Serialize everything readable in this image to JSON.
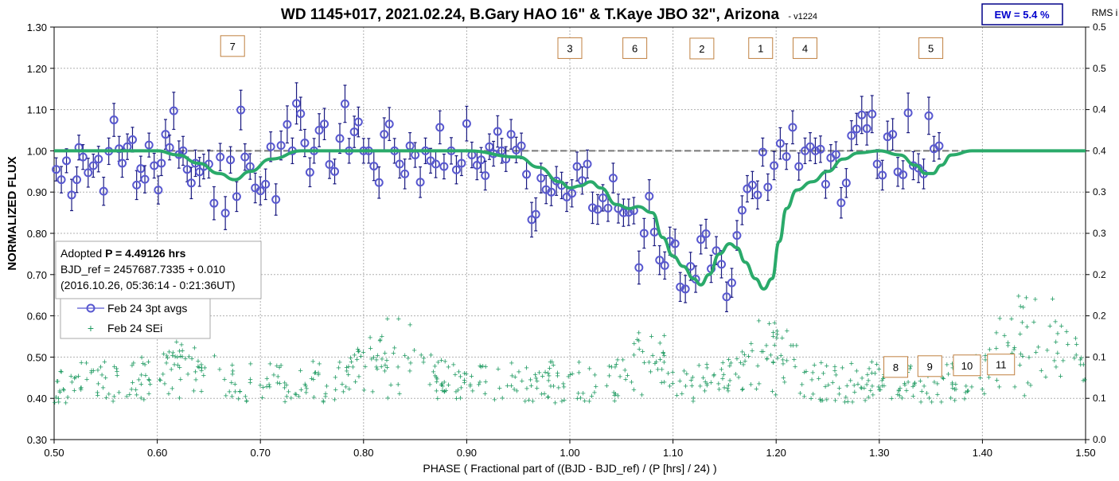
{
  "chart_data": {
    "type": "scatter",
    "title": "WD 1145+017, 2021.02.24, B.Gary HAO 16\" & T.Kaye JBO 32\", Arizona",
    "version": "- v1224",
    "xlabel": "PHASE ( Fractional part of ((BJD - BJD_ref) / (P [hrs] / 24) )",
    "ylabel": "NORMALIZED FLUX",
    "y2label": "RMS i",
    "xlim": [
      0.5,
      1.5
    ],
    "ylim": [
      0.3,
      1.3
    ],
    "y2lim": [
      0.0,
      0.5
    ],
    "x_ticks": [
      "0.50",
      "0.60",
      "0.70",
      "0.80",
      "0.90",
      "1.00",
      "1.10",
      "1.20",
      "1.30",
      "1.40",
      "1.50"
    ],
    "y_ticks": [
      "0.30",
      "0.40",
      "0.50",
      "0.60",
      "0.70",
      "0.80",
      "0.90",
      "1.00",
      "1.10",
      "1.20",
      "1.30"
    ],
    "y2_ticks": [
      "0.0",
      "0.1",
      "0.1",
      "0.2",
      "0.2",
      "0.3",
      "0.3",
      "0.4",
      "0.4",
      "0.5",
      "0.5"
    ],
    "grid": true,
    "ew_badge": "EW = 5.4 %",
    "info_box": {
      "line1_prefix": "Adopted ",
      "line1_bold": "P = 4.49126 hrs",
      "line2": "BJD_ref = 2457687.7335 + 0.010",
      "line3": "(2016.10.26, 05:36:14 - 0:21:36UT)"
    },
    "legend": [
      "Feb 24 3pt avgs",
      "Feb 24 SEi"
    ],
    "dip_labels": [
      {
        "label": "7",
        "x": 0.673,
        "y": 1.254
      },
      {
        "label": "3",
        "x": 1.0,
        "y": 1.249
      },
      {
        "label": "6",
        "x": 1.063,
        "y": 1.249
      },
      {
        "label": "2",
        "x": 1.128,
        "y": 1.248
      },
      {
        "label": "1",
        "x": 1.185,
        "y": 1.249
      },
      {
        "label": "4",
        "x": 1.228,
        "y": 1.249
      },
      {
        "label": "5",
        "x": 1.35,
        "y": 1.249
      },
      {
        "label": "8",
        "x": 1.316,
        "y": 0.476
      },
      {
        "label": "9",
        "x": 1.349,
        "y": 0.478
      },
      {
        "label": "10",
        "x": 1.385,
        "y": 0.48
      },
      {
        "label": "11",
        "x": 1.418,
        "y": 0.482
      }
    ],
    "colors": {
      "points": "#5858d0",
      "errorbars": "#1a1a80",
      "model": "#2aaa6a",
      "sei": "#1e9a60",
      "reference": "#777777",
      "label_border": "#c08040",
      "ew_border": "#000088"
    },
    "reference_level": 1.0,
    "model": {
      "x": [
        0.5,
        0.6,
        0.62,
        0.64,
        0.66,
        0.675,
        0.69,
        0.71,
        0.74,
        0.8,
        0.9,
        0.95,
        0.97,
        0.99,
        1.0,
        1.01,
        1.02,
        1.03,
        1.045,
        1.058,
        1.066,
        1.08,
        1.09,
        1.1,
        1.11,
        1.12,
        1.127,
        1.135,
        1.145,
        1.155,
        1.162,
        1.17,
        1.18,
        1.188,
        1.196,
        1.203,
        1.21,
        1.22,
        1.235,
        1.25,
        1.265,
        1.28,
        1.3,
        1.32,
        1.335,
        1.345,
        1.352,
        1.36,
        1.37,
        1.39,
        1.5
      ],
      "y": [
        1.0,
        1.0,
        0.99,
        0.97,
        0.945,
        0.93,
        0.95,
        0.98,
        1.0,
        1.0,
        1.0,
        0.985,
        0.96,
        0.925,
        0.91,
        0.915,
        0.925,
        0.91,
        0.87,
        0.86,
        0.865,
        0.85,
        0.79,
        0.745,
        0.72,
        0.69,
        0.675,
        0.7,
        0.75,
        0.775,
        0.765,
        0.73,
        0.69,
        0.665,
        0.69,
        0.78,
        0.86,
        0.905,
        0.925,
        0.95,
        0.98,
        0.995,
        1.0,
        0.99,
        0.965,
        0.945,
        0.945,
        0.965,
        0.99,
        1.0,
        1.0
      ]
    },
    "points": [
      {
        "x": 0.502,
        "y": 0.955,
        "e": 0.028
      },
      {
        "x": 0.507,
        "y": 0.93,
        "e": 0.032
      },
      {
        "x": 0.512,
        "y": 0.976,
        "e": 0.029
      },
      {
        "x": 0.517,
        "y": 0.893,
        "e": 0.038
      },
      {
        "x": 0.522,
        "y": 0.93,
        "e": 0.031
      },
      {
        "x": 0.524,
        "y": 1.008,
        "e": 0.03
      },
      {
        "x": 0.528,
        "y": 0.985,
        "e": 0.03
      },
      {
        "x": 0.533,
        "y": 0.947,
        "e": 0.035
      },
      {
        "x": 0.538,
        "y": 0.964,
        "e": 0.028
      },
      {
        "x": 0.543,
        "y": 0.98,
        "e": 0.031
      },
      {
        "x": 0.548,
        "y": 0.902,
        "e": 0.034
      },
      {
        "x": 0.553,
        "y": 0.999,
        "e": 0.032
      },
      {
        "x": 0.558,
        "y": 1.075,
        "e": 0.04
      },
      {
        "x": 0.563,
        "y": 1.005,
        "e": 0.03
      },
      {
        "x": 0.566,
        "y": 0.97,
        "e": 0.034
      },
      {
        "x": 0.571,
        "y": 1.01,
        "e": 0.031
      },
      {
        "x": 0.576,
        "y": 1.027,
        "e": 0.03
      },
      {
        "x": 0.58,
        "y": 0.917,
        "e": 0.035
      },
      {
        "x": 0.584,
        "y": 0.957,
        "e": 0.03
      },
      {
        "x": 0.588,
        "y": 0.931,
        "e": 0.033
      },
      {
        "x": 0.592,
        "y": 1.014,
        "e": 0.029
      },
      {
        "x": 0.597,
        "y": 0.964,
        "e": 0.03
      },
      {
        "x": 0.601,
        "y": 0.905,
        "e": 0.034
      },
      {
        "x": 0.604,
        "y": 0.97,
        "e": 0.03
      },
      {
        "x": 0.608,
        "y": 1.04,
        "e": 0.036
      },
      {
        "x": 0.612,
        "y": 1.008,
        "e": 0.03
      },
      {
        "x": 0.616,
        "y": 1.097,
        "e": 0.045
      },
      {
        "x": 0.621,
        "y": 0.991,
        "e": 0.033
      },
      {
        "x": 0.625,
        "y": 1.0,
        "e": 0.035
      },
      {
        "x": 0.629,
        "y": 0.955,
        "e": 0.03
      },
      {
        "x": 0.633,
        "y": 0.922,
        "e": 0.038
      },
      {
        "x": 0.637,
        "y": 0.97,
        "e": 0.032
      },
      {
        "x": 0.641,
        "y": 0.949,
        "e": 0.035
      },
      {
        "x": 0.645,
        "y": 0.962,
        "e": 0.03
      },
      {
        "x": 0.65,
        "y": 0.968,
        "e": 0.034
      },
      {
        "x": 0.655,
        "y": 0.873,
        "e": 0.04
      },
      {
        "x": 0.661,
        "y": 0.985,
        "e": 0.033
      },
      {
        "x": 0.666,
        "y": 0.849,
        "e": 0.04
      },
      {
        "x": 0.671,
        "y": 0.978,
        "e": 0.032
      },
      {
        "x": 0.677,
        "y": 0.889,
        "e": 0.036
      },
      {
        "x": 0.681,
        "y": 1.099,
        "e": 0.048
      },
      {
        "x": 0.685,
        "y": 0.985,
        "e": 0.032
      },
      {
        "x": 0.69,
        "y": 0.962,
        "e": 0.031
      },
      {
        "x": 0.695,
        "y": 0.91,
        "e": 0.036
      },
      {
        "x": 0.7,
        "y": 0.903,
        "e": 0.034
      },
      {
        "x": 0.705,
        "y": 0.919,
        "e": 0.037
      },
      {
        "x": 0.71,
        "y": 1.01,
        "e": 0.036
      },
      {
        "x": 0.715,
        "y": 0.882,
        "e": 0.038
      },
      {
        "x": 0.72,
        "y": 1.013,
        "e": 0.035
      },
      {
        "x": 0.726,
        "y": 1.064,
        "e": 0.045
      },
      {
        "x": 0.731,
        "y": 1.0,
        "e": 0.031
      },
      {
        "x": 0.735,
        "y": 1.115,
        "e": 0.05
      },
      {
        "x": 0.739,
        "y": 1.09,
        "e": 0.04
      },
      {
        "x": 0.743,
        "y": 1.019,
        "e": 0.033
      },
      {
        "x": 0.748,
        "y": 0.948,
        "e": 0.035
      },
      {
        "x": 0.752,
        "y": 1.0,
        "e": 0.03
      },
      {
        "x": 0.757,
        "y": 1.05,
        "e": 0.04
      },
      {
        "x": 0.762,
        "y": 1.065,
        "e": 0.038
      },
      {
        "x": 0.767,
        "y": 0.967,
        "e": 0.034
      },
      {
        "x": 0.772,
        "y": 0.95,
        "e": 0.03
      },
      {
        "x": 0.777,
        "y": 1.03,
        "e": 0.036
      },
      {
        "x": 0.782,
        "y": 1.114,
        "e": 0.045
      },
      {
        "x": 0.786,
        "y": 1.0,
        "e": 0.03
      },
      {
        "x": 0.791,
        "y": 1.046,
        "e": 0.038
      },
      {
        "x": 0.795,
        "y": 1.07,
        "e": 0.036
      },
      {
        "x": 0.8,
        "y": 1.0,
        "e": 0.03
      },
      {
        "x": 0.805,
        "y": 1.0,
        "e": 0.03
      },
      {
        "x": 0.81,
        "y": 0.963,
        "e": 0.035
      },
      {
        "x": 0.815,
        "y": 0.923,
        "e": 0.038
      },
      {
        "x": 0.82,
        "y": 1.04,
        "e": 0.04
      },
      {
        "x": 0.825,
        "y": 1.065,
        "e": 0.04
      },
      {
        "x": 0.83,
        "y": 1.0,
        "e": 0.03
      },
      {
        "x": 0.835,
        "y": 0.968,
        "e": 0.034
      },
      {
        "x": 0.84,
        "y": 0.944,
        "e": 0.036
      },
      {
        "x": 0.845,
        "y": 1.012,
        "e": 0.032
      },
      {
        "x": 0.85,
        "y": 0.99,
        "e": 0.03
      },
      {
        "x": 0.855,
        "y": 0.924,
        "e": 0.037
      },
      {
        "x": 0.86,
        "y": 1.0,
        "e": 0.031
      },
      {
        "x": 0.865,
        "y": 0.976,
        "e": 0.03
      },
      {
        "x": 0.87,
        "y": 0.968,
        "e": 0.033
      },
      {
        "x": 0.874,
        "y": 1.057,
        "e": 0.04
      },
      {
        "x": 0.878,
        "y": 0.962,
        "e": 0.03
      },
      {
        "x": 0.885,
        "y": 1.0,
        "e": 0.032
      },
      {
        "x": 0.89,
        "y": 0.954,
        "e": 0.034
      },
      {
        "x": 0.895,
        "y": 0.97,
        "e": 0.03
      },
      {
        "x": 0.9,
        "y": 1.066,
        "e": 0.042
      },
      {
        "x": 0.905,
        "y": 0.99,
        "e": 0.031
      },
      {
        "x": 0.91,
        "y": 0.965,
        "e": 0.035
      },
      {
        "x": 0.914,
        "y": 0.978,
        "e": 0.03
      },
      {
        "x": 0.918,
        "y": 0.94,
        "e": 0.035
      },
      {
        "x": 0.922,
        "y": 1.01,
        "e": 0.031
      },
      {
        "x": 0.926,
        "y": 0.993,
        "e": 0.03
      },
      {
        "x": 0.93,
        "y": 1.047,
        "e": 0.038
      },
      {
        "x": 0.934,
        "y": 1.0,
        "e": 0.03
      },
      {
        "x": 0.938,
        "y": 0.98,
        "e": 0.03
      },
      {
        "x": 0.943,
        "y": 1.04,
        "e": 0.036
      },
      {
        "x": 0.948,
        "y": 1.002,
        "e": 0.031
      },
      {
        "x": 0.953,
        "y": 1.012,
        "e": 0.031
      },
      {
        "x": 0.958,
        "y": 0.943,
        "e": 0.035
      },
      {
        "x": 0.963,
        "y": 0.833,
        "e": 0.042
      },
      {
        "x": 0.967,
        "y": 0.846,
        "e": 0.04
      },
      {
        "x": 0.972,
        "y": 0.934,
        "e": 0.036
      },
      {
        "x": 0.977,
        "y": 0.906,
        "e": 0.034
      },
      {
        "x": 0.982,
        "y": 0.9,
        "e": 0.033
      },
      {
        "x": 0.987,
        "y": 0.927,
        "e": 0.035
      },
      {
        "x": 0.992,
        "y": 0.916,
        "e": 0.032
      },
      {
        "x": 0.997,
        "y": 0.888,
        "e": 0.035
      },
      {
        "x": 1.002,
        "y": 0.897,
        "e": 0.033
      },
      {
        "x": 1.007,
        "y": 0.962,
        "e": 0.035
      },
      {
        "x": 1.012,
        "y": 0.928,
        "e": 0.033
      },
      {
        "x": 1.017,
        "y": 0.968,
        "e": 0.034
      },
      {
        "x": 1.022,
        "y": 0.862,
        "e": 0.038
      },
      {
        "x": 1.027,
        "y": 0.858,
        "e": 0.036
      },
      {
        "x": 1.032,
        "y": 0.886,
        "e": 0.032
      },
      {
        "x": 1.037,
        "y": 0.861,
        "e": 0.032
      },
      {
        "x": 1.042,
        "y": 0.934,
        "e": 0.036
      },
      {
        "x": 1.047,
        "y": 0.86,
        "e": 0.035
      },
      {
        "x": 1.052,
        "y": 0.85,
        "e": 0.033
      },
      {
        "x": 1.057,
        "y": 0.851,
        "e": 0.032
      },
      {
        "x": 1.062,
        "y": 0.855,
        "e": 0.032
      },
      {
        "x": 1.067,
        "y": 0.717,
        "e": 0.04
      },
      {
        "x": 1.072,
        "y": 0.8,
        "e": 0.036
      },
      {
        "x": 1.077,
        "y": 0.89,
        "e": 0.04
      },
      {
        "x": 1.082,
        "y": 0.803,
        "e": 0.033
      },
      {
        "x": 1.087,
        "y": 0.735,
        "e": 0.035
      },
      {
        "x": 1.092,
        "y": 0.722,
        "e": 0.033
      },
      {
        "x": 1.097,
        "y": 0.781,
        "e": 0.034
      },
      {
        "x": 1.102,
        "y": 0.775,
        "e": 0.035
      },
      {
        "x": 1.107,
        "y": 0.67,
        "e": 0.035
      },
      {
        "x": 1.112,
        "y": 0.665,
        "e": 0.033
      },
      {
        "x": 1.117,
        "y": 0.72,
        "e": 0.034
      },
      {
        "x": 1.122,
        "y": 0.689,
        "e": 0.032
      },
      {
        "x": 1.127,
        "y": 0.785,
        "e": 0.035
      },
      {
        "x": 1.132,
        "y": 0.799,
        "e": 0.035
      },
      {
        "x": 1.137,
        "y": 0.714,
        "e": 0.033
      },
      {
        "x": 1.142,
        "y": 0.758,
        "e": 0.034
      },
      {
        "x": 1.147,
        "y": 0.725,
        "e": 0.033
      },
      {
        "x": 1.152,
        "y": 0.646,
        "e": 0.036
      },
      {
        "x": 1.157,
        "y": 0.68,
        "e": 0.035
      },
      {
        "x": 1.162,
        "y": 0.795,
        "e": 0.036
      },
      {
        "x": 1.167,
        "y": 0.856,
        "e": 0.035
      },
      {
        "x": 1.172,
        "y": 0.908,
        "e": 0.032
      },
      {
        "x": 1.177,
        "y": 0.917,
        "e": 0.033
      },
      {
        "x": 1.182,
        "y": 0.893,
        "e": 0.034
      },
      {
        "x": 1.187,
        "y": 0.997,
        "e": 0.034
      },
      {
        "x": 1.192,
        "y": 0.912,
        "e": 0.032
      },
      {
        "x": 1.198,
        "y": 0.964,
        "e": 0.034
      },
      {
        "x": 1.204,
        "y": 1.018,
        "e": 0.038
      },
      {
        "x": 1.21,
        "y": 0.986,
        "e": 0.031
      },
      {
        "x": 1.216,
        "y": 1.057,
        "e": 0.04
      },
      {
        "x": 1.222,
        "y": 0.962,
        "e": 0.033
      },
      {
        "x": 1.228,
        "y": 1.0,
        "e": 0.031
      },
      {
        "x": 1.233,
        "y": 1.01,
        "e": 0.034
      },
      {
        "x": 1.238,
        "y": 1.0,
        "e": 0.031
      },
      {
        "x": 1.243,
        "y": 1.004,
        "e": 0.032
      },
      {
        "x": 1.248,
        "y": 0.919,
        "e": 0.034
      },
      {
        "x": 1.253,
        "y": 0.983,
        "e": 0.032
      },
      {
        "x": 1.258,
        "y": 0.991,
        "e": 0.031
      },
      {
        "x": 1.263,
        "y": 0.874,
        "e": 0.037
      },
      {
        "x": 1.268,
        "y": 0.922,
        "e": 0.035
      },
      {
        "x": 1.273,
        "y": 1.037,
        "e": 0.036
      },
      {
        "x": 1.278,
        "y": 1.053,
        "e": 0.038
      },
      {
        "x": 1.283,
        "y": 1.087,
        "e": 0.045
      },
      {
        "x": 1.288,
        "y": 1.054,
        "e": 0.04
      },
      {
        "x": 1.293,
        "y": 1.089,
        "e": 0.045
      },
      {
        "x": 1.298,
        "y": 0.968,
        "e": 0.035
      },
      {
        "x": 1.303,
        "y": 0.941,
        "e": 0.036
      },
      {
        "x": 1.308,
        "y": 1.034,
        "e": 0.038
      },
      {
        "x": 1.313,
        "y": 1.04,
        "e": 0.038
      },
      {
        "x": 1.318,
        "y": 0.949,
        "e": 0.035
      },
      {
        "x": 1.323,
        "y": 0.942,
        "e": 0.034
      },
      {
        "x": 1.328,
        "y": 1.092,
        "e": 0.048
      },
      {
        "x": 1.333,
        "y": 0.964,
        "e": 0.034
      },
      {
        "x": 1.338,
        "y": 0.958,
        "e": 0.035
      },
      {
        "x": 1.343,
        "y": 0.944,
        "e": 0.036
      },
      {
        "x": 1.348,
        "y": 1.085,
        "e": 0.045
      },
      {
        "x": 1.353,
        "y": 1.005,
        "e": 0.03
      },
      {
        "x": 1.358,
        "y": 1.012,
        "e": 0.032
      }
    ],
    "sei": {
      "x": [],
      "y": []
    }
  }
}
